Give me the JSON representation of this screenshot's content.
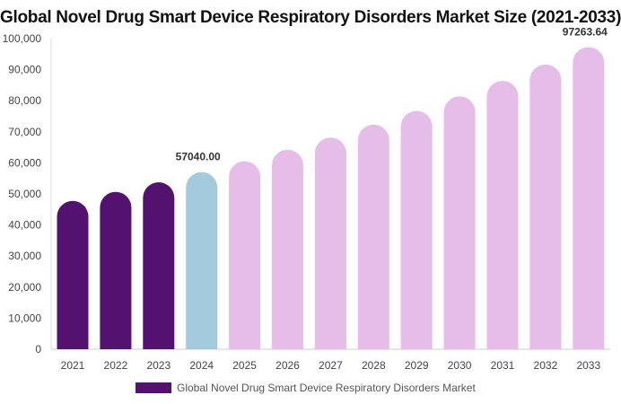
{
  "chart_data": {
    "type": "bar",
    "title": "Global Novel Drug Smart Device Respiratory Disorders Market Size (2021-2033)",
    "categories": [
      "2021",
      "2022",
      "2023",
      "2024",
      "2025",
      "2026",
      "2027",
      "2028",
      "2029",
      "2030",
      "2031",
      "2032",
      "2033"
    ],
    "series": [
      {
        "name": "Global Novel Drug Smart Device Respiratory Disorders Market",
        "values": [
          47744,
          50660,
          53754,
          57040.0,
          60525,
          64223,
          68147,
          72311,
          76729,
          81417,
          86392,
          91670,
          97263.64
        ]
      }
    ],
    "data_labels": {
      "2024": "57040.00",
      "2033": "97263.64"
    },
    "ylim": [
      0,
      100000
    ],
    "yticks": [
      "0",
      "10,000",
      "20,000",
      "30,000",
      "40,000",
      "50,000",
      "60,000",
      "70,000",
      "80,000",
      "90,000",
      "100,000"
    ],
    "grid": false,
    "legend": "bottom",
    "colors": {
      "historical": "#541270",
      "base_year": "#a4cade",
      "forecast": "#e6bce8"
    }
  }
}
